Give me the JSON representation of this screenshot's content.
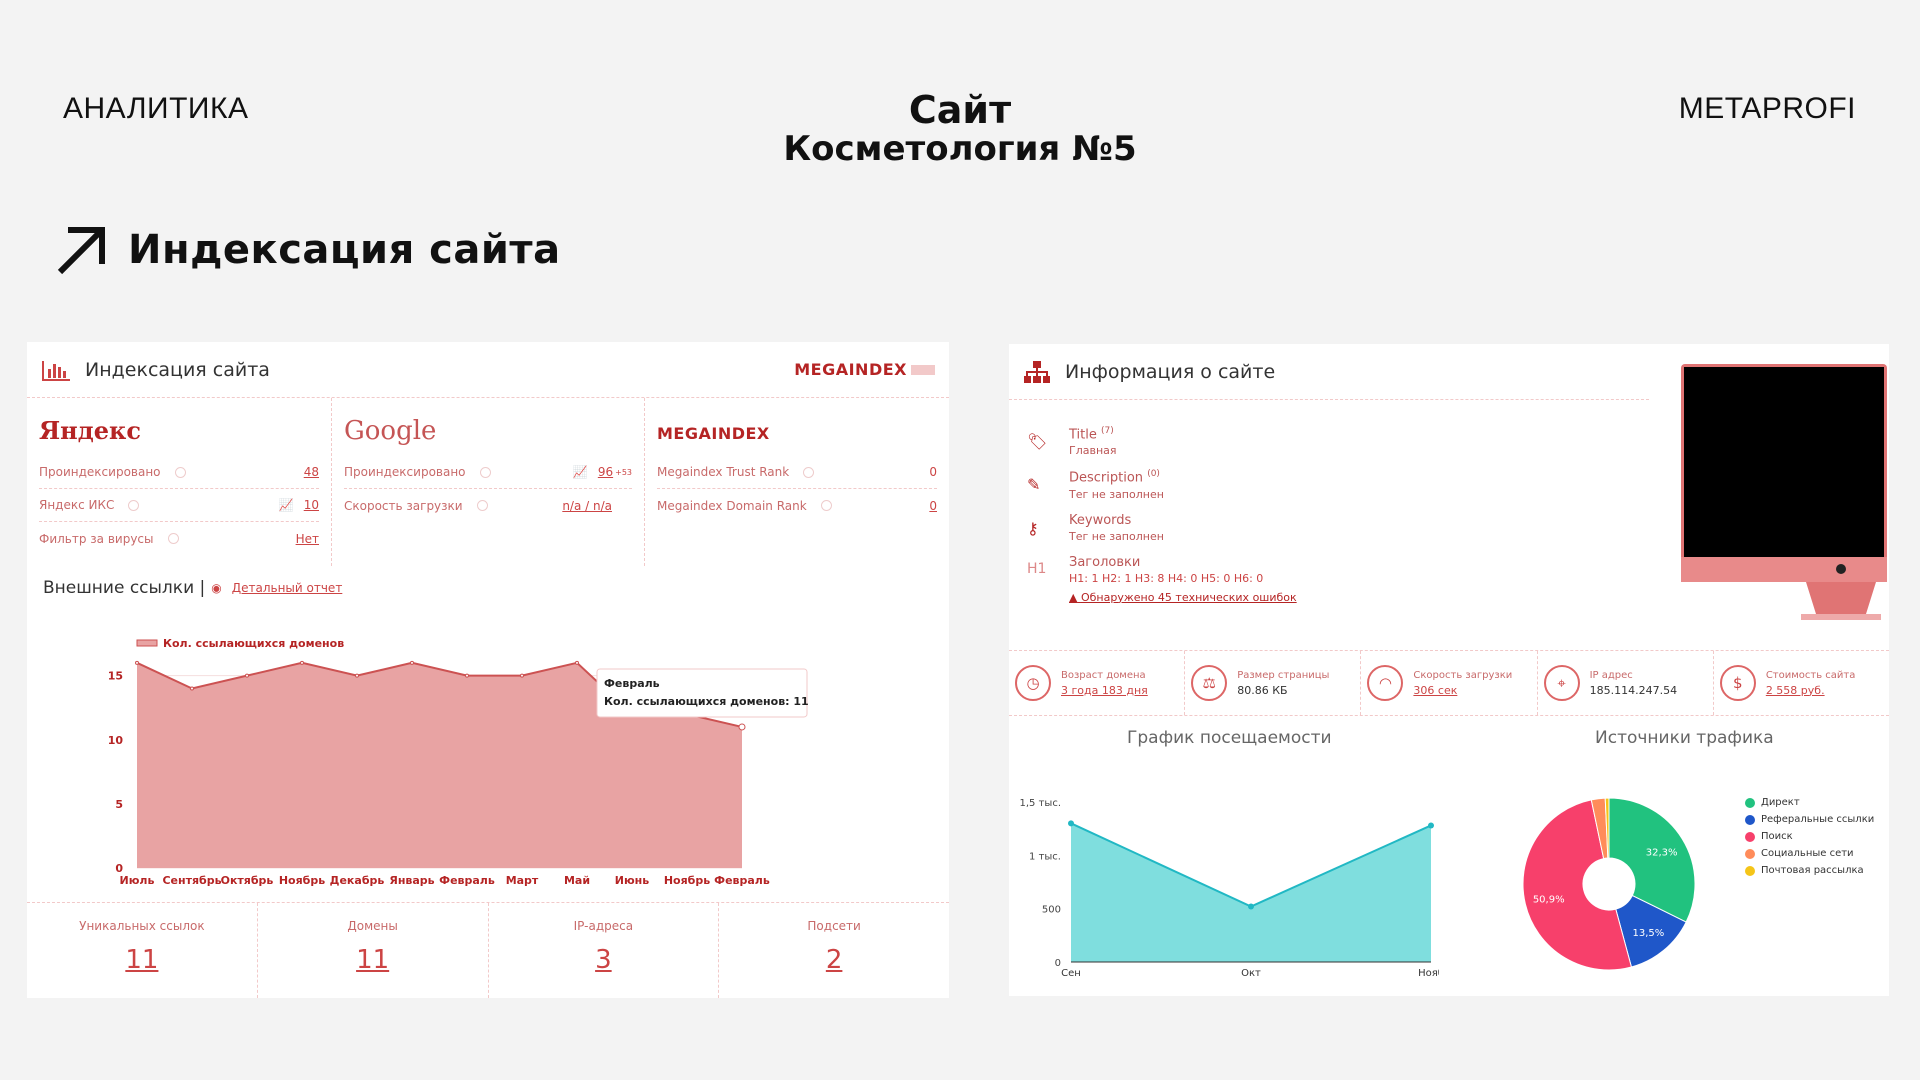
{
  "header": {
    "left": "АНАЛИТИКА",
    "center_line1": "Сайт",
    "center_line2": "Косметология №5",
    "right": "METAPROFI"
  },
  "section_title": "Индексация сайта",
  "left_panel": {
    "title": "Индексация сайта",
    "logo": "MEGAINDEX",
    "yandex": {
      "brand": "Яндекс",
      "rows": [
        {
          "label": "Проиндексировано",
          "value": "48"
        },
        {
          "label": "Яндекс ИКС",
          "value": "10"
        },
        {
          "label": "Фильтр за вирусы",
          "value": "Нет"
        }
      ]
    },
    "google": {
      "brand": "Google",
      "rows": [
        {
          "label": "Проиндексировано",
          "value": "96",
          "delta": "+53"
        },
        {
          "label": "Скорость загрузки",
          "value": "n/a / n/a"
        }
      ]
    },
    "megaindex": {
      "brand": "MEGAINDEX",
      "rows": [
        {
          "label": "Megaindex Trust Rank",
          "value": "0"
        },
        {
          "label": "Megaindex Domain Rank",
          "value": "0"
        }
      ]
    },
    "external_links": "Внешние ссылки |",
    "detailed_report": "Детальный отчет",
    "stats": [
      {
        "label": "Уникальных ссылок",
        "value": "11"
      },
      {
        "label": "Домены",
        "value": "11"
      },
      {
        "label": "IP-адреса",
        "value": "3"
      },
      {
        "label": "Подсети",
        "value": "2"
      }
    ]
  },
  "right_panel": {
    "title": "Информация о сайте",
    "meta": {
      "title_label": "Title",
      "title_count": "(7)",
      "title_value": "Главная",
      "description_label": "Description",
      "description_count": "(0)",
      "description_value": "Тег не заполнен",
      "keywords_label": "Keywords",
      "keywords_value": "Тег не заполнен",
      "headings_label": "Заголовки",
      "headings_value": "H1: 1   H2: 1   H3: 8   H4: 0   H5: 0   H6: 0",
      "error_text": "Обнаружено 45 технических ошибок"
    },
    "stats": [
      {
        "label": "Возраст домена",
        "value": "3 года 183 дня",
        "link": true
      },
      {
        "label": "Размер страницы",
        "value": "80.86 КБ",
        "link": false
      },
      {
        "label": "Скорость загрузки",
        "value": "306 сек",
        "link": true
      },
      {
        "label": "IP адрес",
        "value": "185.114.247.54",
        "link": false
      },
      {
        "label": "Стоимость сайта",
        "value": "2 558 руб.",
        "link": true
      }
    ],
    "visits_title": "График посещаемости",
    "traffic_title": "Источники трафика"
  },
  "chart_data": [
    {
      "type": "area",
      "legend": "Кол. ссылающихся доменов",
      "categories": [
        "Июль",
        "Сентябрь",
        "Октябрь",
        "Ноябрь",
        "Декабрь",
        "Январь",
        "Февраль",
        "Март",
        "Май",
        "Июнь",
        "Ноябрь",
        "Февраль"
      ],
      "values": [
        16,
        14,
        15,
        16,
        15,
        16,
        15,
        15,
        16,
        12,
        12,
        11
      ],
      "ylim": [
        0,
        17
      ],
      "yticks": [
        "0",
        "5",
        "10",
        "15"
      ],
      "tooltip_title": "Февраль",
      "tooltip_text": "Кол. ссылающихся доменов:",
      "tooltip_value": "11",
      "color": "#e8a3a3"
    },
    {
      "type": "area",
      "categories": [
        "Сен",
        "Окт",
        "Нояб"
      ],
      "values": [
        1300,
        520,
        1280
      ],
      "ylim": [
        0,
        1500
      ],
      "yticks": [
        "0",
        "500",
        "1 тыс.",
        "1,5 тыс."
      ],
      "color": "#7fdede"
    },
    {
      "type": "pie",
      "labels": [
        "Директ",
        "Реферальные ссылки",
        "Поиск",
        "Социальные сети",
        "Почтовая рассылка"
      ],
      "values": [
        32.3,
        13.5,
        50.9,
        2.6,
        0.7
      ],
      "slice_labels": [
        "32,3%",
        "13,5%",
        "50,9%",
        "",
        ""
      ],
      "colors": [
        "#21c27f",
        "#1f57c9",
        "#f7406b",
        "#ff8c5a",
        "#f5c518"
      ]
    }
  ]
}
